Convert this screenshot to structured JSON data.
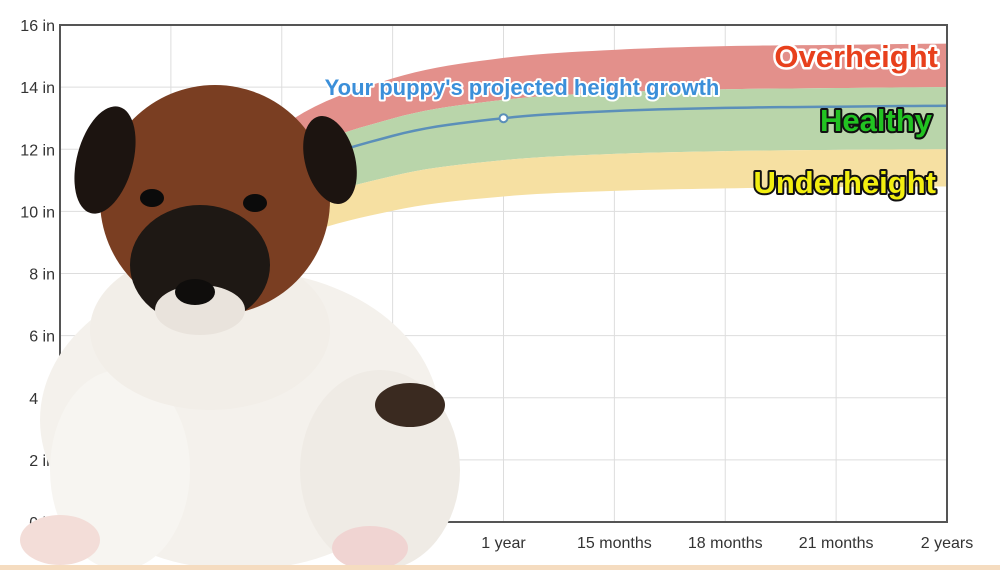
{
  "chart_data": {
    "type": "area",
    "title": "",
    "xlabel": "",
    "ylabel": "",
    "x": [
      0,
      3,
      6,
      9,
      12,
      15,
      18,
      21,
      24
    ],
    "x_unit": "months",
    "x_tick_labels": [
      "",
      "",
      "",
      "",
      "1 year",
      "15 months",
      "18 months",
      "21 months",
      "2 years"
    ],
    "y_tick_labels": [
      "0 in",
      "2 in",
      "4 in",
      "6 in",
      "8 in",
      "10 in",
      "12 in",
      "14 in",
      "16 in"
    ],
    "ylim": [
      0,
      16
    ],
    "xlim": [
      0,
      24
    ],
    "grid": true,
    "bands": [
      {
        "name": "Overheight",
        "color": "#e3908b",
        "label_color": "#e8401c",
        "upper": [
          0,
          8.97,
          12.72,
          14.28,
          14.94,
          15.2,
          15.32,
          15.36,
          15.4
        ],
        "lower": [
          0,
          8.16,
          11.57,
          12.99,
          13.59,
          13.83,
          13.93,
          13.97,
          14.0
        ]
      },
      {
        "name": "Healthy",
        "color": "#b9d5aa",
        "label_color": "#22c322",
        "upper": [
          0,
          8.16,
          11.57,
          12.99,
          13.59,
          13.83,
          13.93,
          13.97,
          14.0
        ],
        "lower": [
          0,
          7.0,
          9.92,
          11.14,
          11.65,
          11.85,
          11.94,
          11.98,
          12.0
        ]
      },
      {
        "name": "Underheight",
        "color": "#f6e0a2",
        "label_color": "#f2ee10",
        "upper": [
          0,
          7.0,
          9.92,
          11.14,
          11.65,
          11.85,
          11.94,
          11.98,
          12.0
        ],
        "lower": [
          0,
          6.29,
          8.92,
          10.02,
          10.48,
          10.66,
          10.74,
          10.78,
          10.8
        ]
      }
    ],
    "series": [
      {
        "name": "Your puppy's projected height growth",
        "color": "#5b8fb9",
        "values": [
          0,
          7.81,
          11.07,
          12.43,
          13.0,
          13.23,
          13.33,
          13.37,
          13.4
        ],
        "marker_at": 12
      }
    ]
  },
  "image": {
    "subject": "puppy-photo"
  }
}
